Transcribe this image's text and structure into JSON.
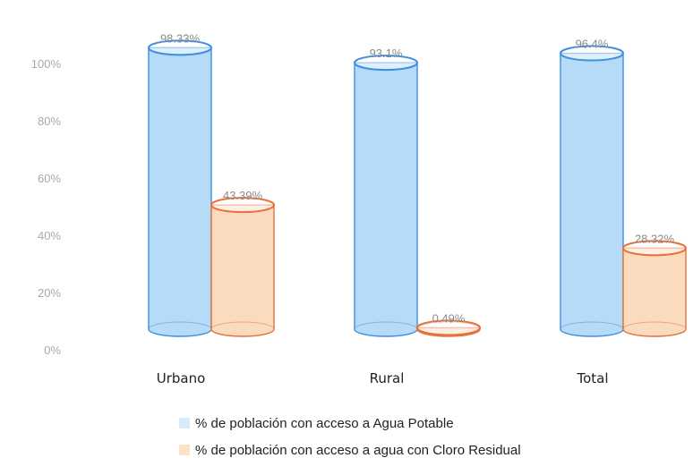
{
  "chart_data": {
    "type": "bar",
    "categories": [
      "Urbano",
      "Rural",
      "Total"
    ],
    "series": [
      {
        "name": "% de población con acceso a Agua Potable",
        "values": [
          98.33,
          93.1,
          96.4
        ],
        "labels": [
          "98.33%",
          "93.1%",
          "96.4%"
        ],
        "color": "#9ecff6",
        "edge": "#3f8fe0"
      },
      {
        "name": "% de población con acceso a agua con Cloro Residual",
        "values": [
          43.39,
          0.49,
          28.32
        ],
        "labels": [
          "43.39%",
          "0.49%",
          "28.32%"
        ],
        "color": "#f8cfa7",
        "edge": "#e8703b"
      }
    ],
    "yticks": [
      "0%",
      "20%",
      "40%",
      "60%",
      "80%",
      "100%"
    ],
    "ylim": [
      0,
      100
    ],
    "legend": "bottom",
    "grid": false
  }
}
